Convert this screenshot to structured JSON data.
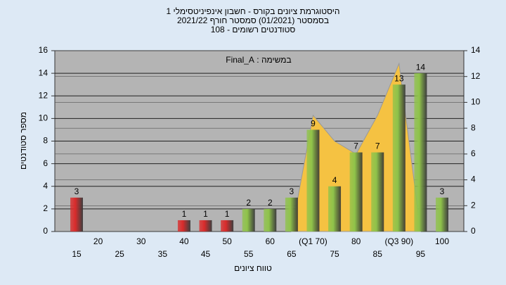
{
  "chart_data": {
    "type": "bar",
    "title": [
      "היסטוגרמת ציונים בקורס - חשבון אינפיניטסימלי 1",
      "בסמסטר  (01/2021)  סמסטר חורף 2021/22",
      "סטודנטים רשומים - 108"
    ],
    "annotation": "במשימה : Final_A",
    "y_label": "מספר סטודנטים",
    "x_label": "טווח ציונים",
    "categories": [
      "15",
      "20",
      "25",
      "30",
      "35",
      "40",
      "45",
      "50",
      "55",
      "60",
      "65",
      "(Q1 70)",
      "75",
      "80",
      "85",
      "(Q3 90)",
      "95",
      "100"
    ],
    "series": [
      {
        "values": [
          3,
          0,
          0,
          0,
          0,
          1,
          1,
          1,
          2,
          2,
          3,
          9,
          4,
          7,
          7,
          13,
          14,
          3
        ],
        "colors": [
          "#d92b2b",
          "#d92b2b",
          "#d92b2b",
          "#d92b2b",
          "#d92b2b",
          "#d92b2b",
          "#d92b2b",
          "#d92b2b",
          "#8fc34a",
          "#8fc34a",
          "#8fc34a",
          "#8fc34a",
          "#8fc34a",
          "#8fc34a",
          "#8fc34a",
          "#8fc34a",
          "#8fc34a",
          "#8fc34a"
        ]
      },
      {
        "type": "area",
        "axis": "y2",
        "color": "#f5c242",
        "values": [
          null,
          null,
          null,
          null,
          null,
          null,
          null,
          null,
          null,
          null,
          0,
          9,
          7,
          6,
          9,
          13,
          0,
          null
        ]
      }
    ],
    "ylim": [
      0,
      16
    ],
    "yticks": [
      0,
      2,
      4,
      6,
      8,
      10,
      12,
      14,
      16
    ],
    "y2lim": [
      0,
      14
    ],
    "y2ticks": [
      0,
      2,
      4,
      6,
      8,
      10,
      12,
      14
    ],
    "grid": true
  }
}
